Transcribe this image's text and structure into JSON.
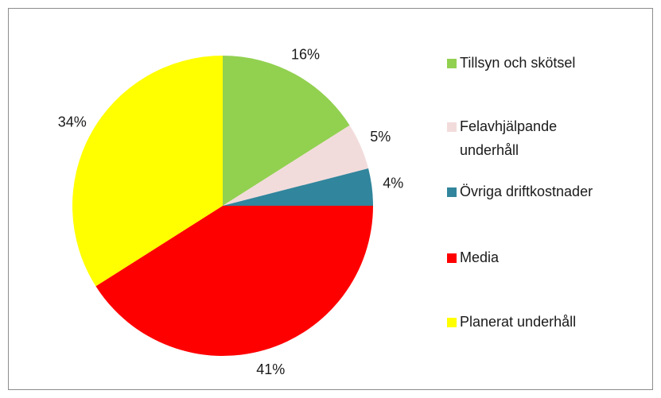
{
  "chart_data": {
    "type": "pie",
    "categories": [
      "Tillsyn och skötsel",
      "Felavhjälpande underhåll",
      "Övriga driftkostnader",
      "Media",
      "Planerat underhåll"
    ],
    "values": [
      16,
      5,
      4,
      41,
      34
    ],
    "value_labels": [
      "16%",
      "5%",
      "4%",
      "41%",
      "34%"
    ],
    "colors": [
      "#92d050",
      "#f2dcdb",
      "#31859c",
      "#ff0000",
      "#ffff00"
    ],
    "legend": "right"
  }
}
